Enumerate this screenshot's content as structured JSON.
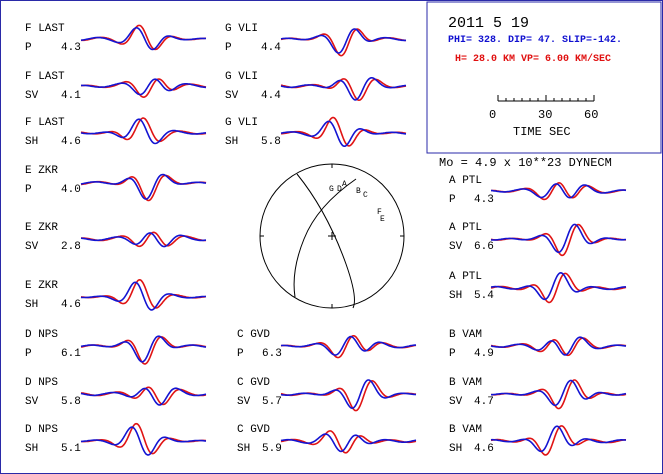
{
  "header": {
    "date": "2011  5 19",
    "params_blue": "PHI= 328. DIP= 47. SLIP=-142.",
    "params_red": "H= 28.0 KM  VP= 6.00 KM/SEC",
    "scale": {
      "ticks": [
        "0",
        "30",
        "60"
      ],
      "label": "TIME  SEC"
    }
  },
  "moment": "Mo =  4.9 x 10**23 DYNECM",
  "mechanism": {
    "station_labels": [
      "G",
      "D",
      "A",
      "B",
      "C",
      "F",
      "E"
    ]
  },
  "colors": {
    "observed": "#1414d2",
    "synthetic": "#e01414",
    "frame": "#2a2aa8"
  },
  "traces": [
    {
      "id": "f-last-p",
      "station": "F LAST",
      "phase": "P",
      "value": "4.3"
    },
    {
      "id": "f-last-sv",
      "station": "F LAST",
      "phase": "SV",
      "value": "4.1"
    },
    {
      "id": "f-last-sh",
      "station": "F LAST",
      "phase": "SH",
      "value": "4.6"
    },
    {
      "id": "e-zkr-p",
      "station": "E ZKR",
      "phase": "P",
      "value": "4.0"
    },
    {
      "id": "e-zkr-sv",
      "station": "E ZKR",
      "phase": "SV",
      "value": "2.8"
    },
    {
      "id": "e-zkr-sh",
      "station": "E ZKR",
      "phase": "SH",
      "value": "4.6"
    },
    {
      "id": "d-nps-p",
      "station": "D NPS",
      "phase": "P",
      "value": "6.1"
    },
    {
      "id": "d-nps-sv",
      "station": "D NPS",
      "phase": "SV",
      "value": "5.8"
    },
    {
      "id": "d-nps-sh",
      "station": "D NPS",
      "phase": "SH",
      "value": "5.1"
    },
    {
      "id": "g-vli-p",
      "station": "G VLI",
      "phase": "P",
      "value": "4.4"
    },
    {
      "id": "g-vli-sv",
      "station": "G VLI",
      "phase": "SV",
      "value": "4.4"
    },
    {
      "id": "g-vli-sh",
      "station": "G VLI",
      "phase": "SH",
      "value": "5.8"
    },
    {
      "id": "c-gvd-p",
      "station": "C GVD",
      "phase": "P",
      "value": "6.3"
    },
    {
      "id": "c-gvd-sv",
      "station": "C GVD",
      "phase": "SV",
      "value": "5.7"
    },
    {
      "id": "c-gvd-sh",
      "station": "C GVD",
      "phase": "SH",
      "value": "5.9"
    },
    {
      "id": "a-ptl-p",
      "station": "A PTL",
      "phase": "P",
      "value": "4.3"
    },
    {
      "id": "a-ptl-sv",
      "station": "A PTL",
      "phase": "SV",
      "value": "6.6"
    },
    {
      "id": "a-ptl-sh",
      "station": "A PTL",
      "phase": "SH",
      "value": "5.4"
    },
    {
      "id": "b-vam-p",
      "station": "B VAM",
      "phase": "P",
      "value": "4.9"
    },
    {
      "id": "b-vam-sv",
      "station": "B VAM",
      "phase": "SV",
      "value": "4.7"
    },
    {
      "id": "b-vam-sh",
      "station": "B VAM",
      "phase": "SH",
      "value": "4.6"
    }
  ]
}
